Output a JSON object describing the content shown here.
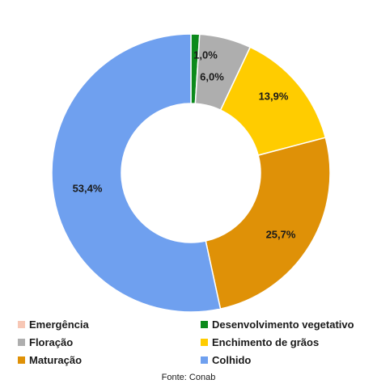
{
  "chart_data": {
    "type": "pie",
    "variant": "donut",
    "categories": [
      "Emergência",
      "Desenvolvimento vegetativo",
      "Floração",
      "Enchimento de grãos",
      "Maturação",
      "Colhido"
    ],
    "values": [
      0.0,
      1.0,
      6.0,
      13.9,
      25.7,
      53.4
    ],
    "value_labels": [
      "",
      "1,0%",
      "6,0%",
      "13,9%",
      "25,7%",
      "53,4%"
    ],
    "colors": [
      "#f7c7b5",
      "#0c8a1c",
      "#aeaeae",
      "#ffcc00",
      "#df9107",
      "#6fa0ef"
    ],
    "legend_placement": "bottom",
    "source": "Fonte: Conab"
  }
}
